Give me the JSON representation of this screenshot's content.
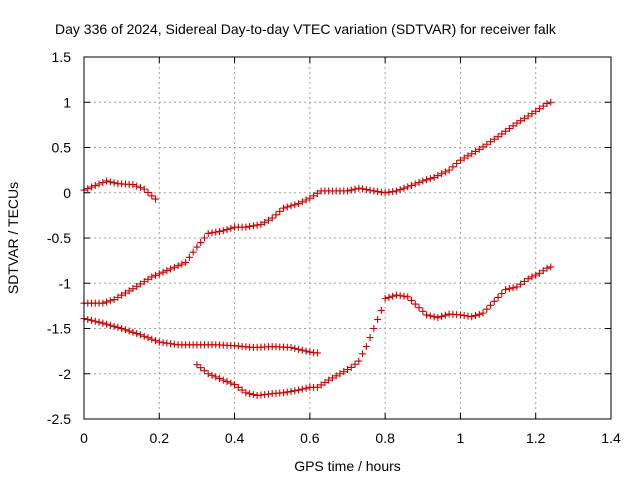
{
  "chart_data": {
    "type": "scatter",
    "title": "Day 336 of 2024, Sidereal Day-to-day VTEC variation (SDTVAR) for receiver falk",
    "xlabel": "GPS time / hours",
    "ylabel": "SDTVAR / TECUs",
    "xlim": [
      0,
      1.4
    ],
    "ylim": [
      -2.5,
      1.5
    ],
    "xticks": [
      "0",
      "0.2",
      "0.4",
      "0.6",
      "0.8",
      "1",
      "1.2",
      "1.4"
    ],
    "xtick_values": [
      0,
      0.2,
      0.4,
      0.6,
      0.8,
      1.0,
      1.2,
      1.4
    ],
    "yticks": [
      "1.5",
      "1",
      "0.5",
      "0",
      "-0.5",
      "-1",
      "-1.5",
      "-2",
      "-2.5"
    ],
    "ytick_values": [
      1.5,
      1.0,
      0.5,
      0.0,
      -0.5,
      -1.0,
      -1.5,
      -2.0,
      -2.5
    ],
    "grid": true,
    "marker": "plus",
    "marker_color": "#cc0000",
    "series_anchors": [
      {
        "x": [
          0.0,
          0.03,
          0.06,
          0.09,
          0.13,
          0.16,
          0.19
        ],
        "y": [
          0.03,
          0.08,
          0.13,
          0.1,
          0.09,
          0.04,
          -0.07
        ]
      },
      {
        "x": [
          0.0,
          0.05,
          0.08,
          0.13,
          0.18,
          0.22,
          0.27,
          0.3,
          0.33,
          0.37,
          0.4,
          0.43,
          0.47,
          0.5,
          0.53,
          0.57,
          0.6,
          0.63,
          0.67,
          0.7,
          0.73,
          0.77,
          0.8,
          0.83,
          0.87,
          0.9,
          0.93,
          0.97,
          1.0,
          1.05,
          1.1,
          1.15,
          1.2,
          1.235
        ],
        "y": [
          -1.22,
          -1.22,
          -1.18,
          -1.06,
          -0.93,
          -0.86,
          -0.77,
          -0.6,
          -0.45,
          -0.42,
          -0.38,
          -0.38,
          -0.35,
          -0.28,
          -0.17,
          -0.12,
          -0.06,
          0.02,
          0.02,
          0.02,
          0.05,
          0.02,
          0.0,
          0.02,
          0.08,
          0.13,
          0.17,
          0.25,
          0.36,
          0.48,
          0.62,
          0.77,
          0.9,
          1.0
        ]
      },
      {
        "x": [
          0.0,
          0.05,
          0.1,
          0.15,
          0.2,
          0.25,
          0.3,
          0.35,
          0.4,
          0.45,
          0.5,
          0.55,
          0.6,
          0.615
        ],
        "y": [
          -1.39,
          -1.44,
          -1.5,
          -1.57,
          -1.65,
          -1.68,
          -1.68,
          -1.68,
          -1.69,
          -1.71,
          -1.7,
          -1.71,
          -1.76,
          -1.77
        ]
      },
      {
        "x": [
          0.3,
          0.33,
          0.37,
          0.4,
          0.43,
          0.46,
          0.5,
          0.53,
          0.57,
          0.6,
          0.62,
          0.65,
          0.68,
          0.71,
          0.73,
          0.75,
          0.77,
          0.79,
          0.8,
          0.83,
          0.86,
          0.88,
          0.91,
          0.94,
          0.97,
          1.0,
          1.03,
          1.06,
          1.09,
          1.12,
          1.15,
          1.18,
          1.21,
          1.235
        ],
        "y": [
          -1.9,
          -2.0,
          -2.07,
          -2.12,
          -2.21,
          -2.24,
          -2.22,
          -2.21,
          -2.18,
          -2.15,
          -2.15,
          -2.07,
          -2.0,
          -1.93,
          -1.86,
          -1.7,
          -1.5,
          -1.3,
          -1.17,
          -1.13,
          -1.15,
          -1.23,
          -1.35,
          -1.38,
          -1.34,
          -1.35,
          -1.37,
          -1.33,
          -1.2,
          -1.07,
          -1.04,
          -0.95,
          -0.89,
          -0.82
        ]
      }
    ],
    "series_step": 0.01
  }
}
